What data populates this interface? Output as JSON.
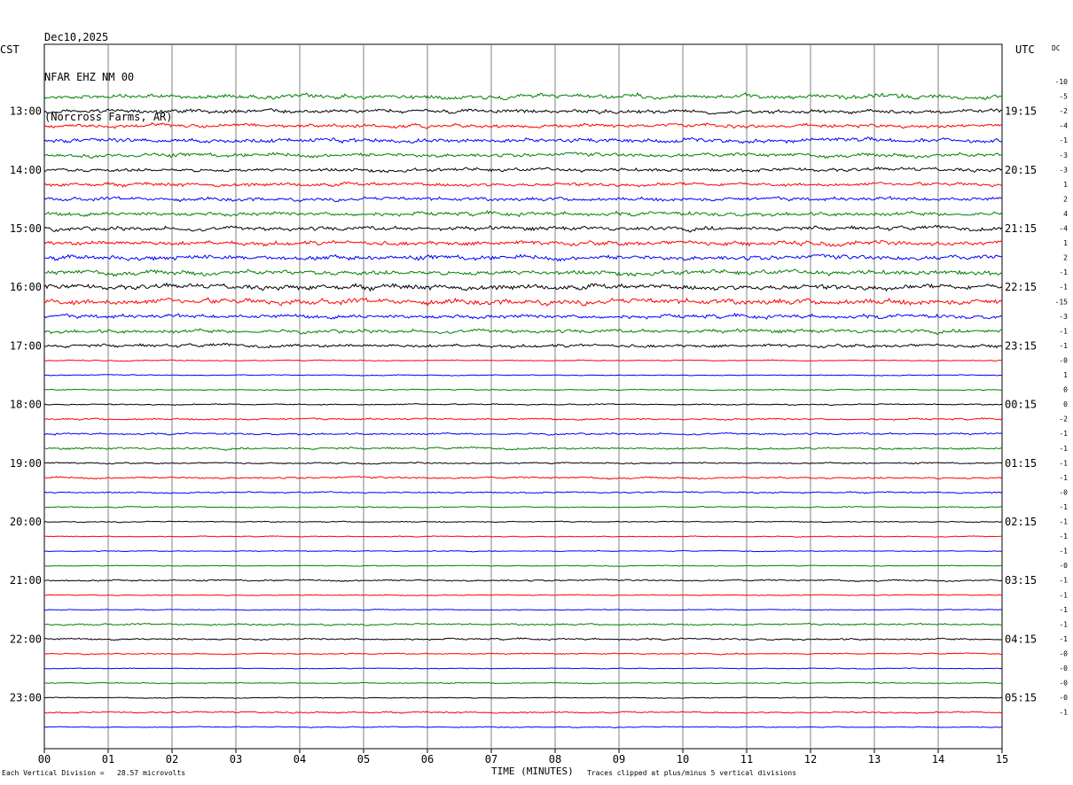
{
  "header": {
    "date": "Dec10,2025",
    "station": "NFAR EHZ NM 00",
    "location": "(Norcross Farms, AR)"
  },
  "left_tz": "CST",
  "right_tz": "UTC",
  "dc_label": "DC",
  "footer": {
    "scale_note": "Each Vertical Division =   28.57 microvolts",
    "axis_title": "TIME (MINUTES)",
    "clip_note": "Traces clipped at plus/minus 5 vertical divisions"
  },
  "colors": {
    "trace_cycle": [
      "#008000",
      "#000000",
      "#ff0000",
      "#0000ff"
    ],
    "grid": "#808080"
  },
  "chart_data": {
    "type": "line",
    "title": "",
    "xlabel": "TIME (MINUTES)",
    "xlim": [
      0,
      15
    ],
    "x_tick_labels": [
      "00",
      "01",
      "02",
      "03",
      "04",
      "05",
      "06",
      "07",
      "08",
      "09",
      "10",
      "11",
      "12",
      "13",
      "14",
      "15"
    ],
    "left_hour_labels": [
      "13:00",
      "14:00",
      "15:00",
      "16:00",
      "17:00",
      "18:00",
      "19:00",
      "20:00",
      "21:00",
      "22:00",
      "23:00"
    ],
    "right_hour_labels": [
      "19:15",
      "20:15",
      "21:15",
      "22:15",
      "23:15",
      "00:15",
      "01:15",
      "02:15",
      "03:15",
      "04:15",
      "05:15"
    ],
    "dc_offsets": [
      "-10",
      "-5",
      "-2",
      "-4",
      "-1",
      "-3",
      "-3",
      "1",
      "2",
      "4",
      "-4",
      "1",
      "2",
      "-1",
      "-1",
      "-15",
      "-3",
      "-1",
      "-1",
      "-0",
      "1",
      "0",
      "0",
      "-2",
      "-1",
      "-1",
      "-1",
      "-1",
      "-0",
      "-1",
      "-1",
      "-1",
      "-1",
      "-0",
      "-1",
      "-1",
      "-1",
      "-1",
      "-1",
      "-0",
      "-0",
      "-0",
      "-0",
      "-1"
    ],
    "trace_amplitude": [
      3.0,
      2.6,
      2.4,
      2.8,
      2.6,
      2.4,
      2.3,
      2.5,
      2.6,
      2.7,
      3.0,
      3.2,
      3.2,
      3.4,
      3.8,
      2.6,
      2.4,
      2.2,
      0.7,
      0.6,
      0.7,
      0.8,
      1.2,
      1.2,
      1.4,
      1.0,
      1.3,
      1.0,
      0.8,
      0.7,
      0.6,
      0.6,
      0.6,
      1.1,
      0.6,
      0.6,
      1.2,
      1.2,
      0.8,
      0.6,
      0.7,
      0.6,
      1.0,
      0.7
    ]
  }
}
